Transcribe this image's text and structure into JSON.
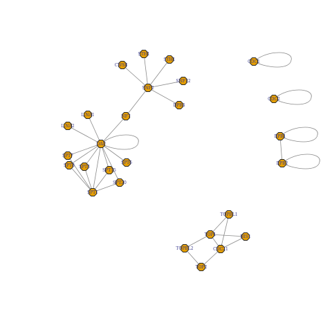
{
  "graph": {
    "node_color": "#e69f00",
    "label_color": "#3a3a8c",
    "edge_color": "#8a8a8a",
    "nodes": [
      {
        "id": "n1",
        "label": "STH1"
      },
      {
        "id": "n2",
        "label": "STH1"
      },
      {
        "id": "n3",
        "label": "CWS8"
      },
      {
        "id": "n4",
        "label": "SNF2"
      },
      {
        "id": "n5",
        "label": "SNF12"
      },
      {
        "id": "n6",
        "label": "DPB4"
      },
      {
        "id": "n7",
        "label": "NF7"
      },
      {
        "id": "n8",
        "label": "L.NA1"
      },
      {
        "id": "n9",
        "label": "L.NA2"
      },
      {
        "id": "n10",
        "label": "DAP"
      },
      {
        "id": "n11",
        "label": "SPT7"
      },
      {
        "id": "n12",
        "label": "SPT8"
      },
      {
        "id": "n13",
        "label": "SPT3"
      },
      {
        "id": "n14",
        "label": "SPT15"
      },
      {
        "id": "n15",
        "label": "SPT6"
      },
      {
        "id": "n16",
        "label": "SPT20"
      },
      {
        "id": "n17",
        "label": "SPT1"
      },
      {
        "id": "n18",
        "label": "CDC1"
      },
      {
        "id": "n19",
        "label": "CDC2"
      },
      {
        "id": "n20",
        "label": "RPB1"
      },
      {
        "id": "n21",
        "label": "RPB2"
      },
      {
        "id": "n22",
        "label": "TOP1"
      },
      {
        "id": "n23",
        "label": "TOP2"
      },
      {
        "id": "n24",
        "label": "TOPBL1"
      },
      {
        "id": "n25",
        "label": "HIS1"
      },
      {
        "id": "n26",
        "label": "TOPBL2"
      },
      {
        "id": "n27",
        "label": "CDC21"
      }
    ],
    "edges": [
      [
        "n1",
        "n4"
      ],
      [
        "n2",
        "n4"
      ],
      [
        "n3",
        "n4"
      ],
      [
        "n5",
        "n4"
      ],
      [
        "n6",
        "n4"
      ],
      [
        "n7",
        "n4"
      ],
      [
        "n7",
        "n10"
      ],
      [
        "n8",
        "n10"
      ],
      [
        "n9",
        "n10"
      ],
      [
        "n10",
        "n11"
      ],
      [
        "n10",
        "n12"
      ],
      [
        "n10",
        "n13"
      ],
      [
        "n10",
        "n14"
      ],
      [
        "n10",
        "n15"
      ],
      [
        "n10",
        "n16"
      ],
      [
        "n10",
        "n17"
      ],
      [
        "n11",
        "n17"
      ],
      [
        "n12",
        "n17"
      ],
      [
        "n13",
        "n17"
      ],
      [
        "n14",
        "n17"
      ],
      [
        "n16",
        "n17"
      ],
      [
        "n20",
        "n21"
      ],
      [
        "n24",
        "n22"
      ],
      [
        "n24",
        "n27"
      ],
      [
        "n22",
        "n26"
      ],
      [
        "n22",
        "n25"
      ],
      [
        "n22",
        "n27"
      ],
      [
        "n26",
        "n23"
      ],
      [
        "n27",
        "n25"
      ],
      [
        "n27",
        "n23"
      ]
    ],
    "self_loops": [
      "n10",
      "n18",
      "n19",
      "n20",
      "n21"
    ]
  }
}
